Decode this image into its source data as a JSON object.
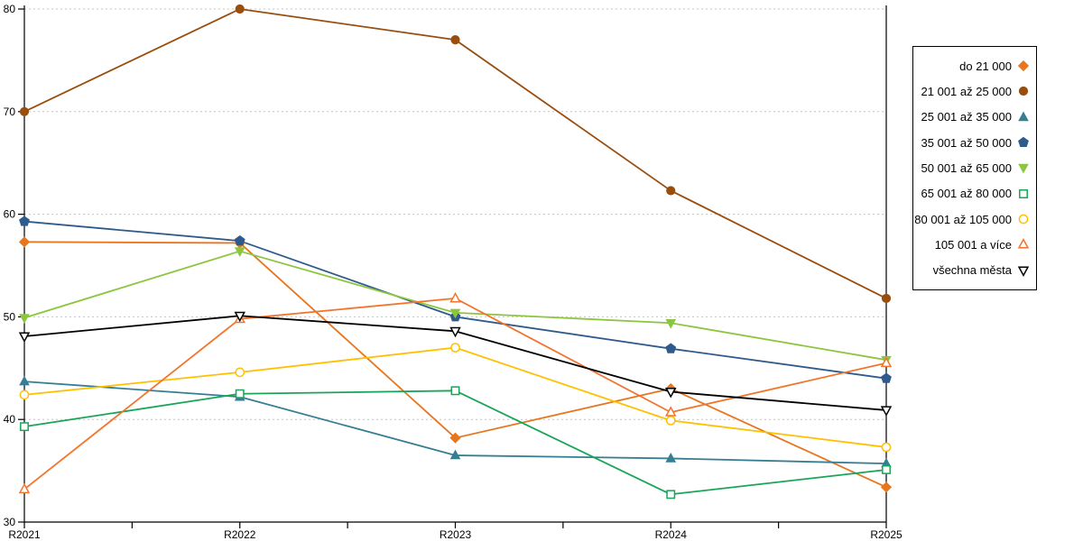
{
  "chart_data": {
    "type": "line",
    "title": "",
    "xlabel": "",
    "ylabel": "",
    "categories": [
      "R2021",
      "R2022",
      "R2023",
      "R2024",
      "R2025"
    ],
    "ylim": [
      30,
      80
    ],
    "y_ticks": [
      {
        "value": 30,
        "label": "30"
      },
      {
        "value": 40,
        "label": "40"
      },
      {
        "value": 50,
        "label": "50"
      },
      {
        "value": 60,
        "label": "60"
      },
      {
        "value": 70,
        "label": "70"
      },
      {
        "value": 80,
        "label": "80"
      }
    ],
    "grid_values": [
      40,
      50,
      60,
      70,
      80
    ],
    "grid_style": "horizontal-dotted",
    "legend_position": "right",
    "series": [
      {
        "name": "do 21 000",
        "color": "#E8761E",
        "marker": "diamond",
        "fill": "filled",
        "values": [
          57.3,
          57.2,
          38.2,
          43.0,
          33.4
        ]
      },
      {
        "name": "21 001 až 25 000",
        "color": "#9A4E0E",
        "marker": "circle",
        "fill": "filled",
        "values": [
          70.0,
          80.0,
          77.0,
          62.3,
          51.8
        ]
      },
      {
        "name": "25 001 až 35 000",
        "color": "#357E93",
        "marker": "triangle-up",
        "fill": "filled",
        "values": [
          43.7,
          42.2,
          36.5,
          36.2,
          35.7
        ]
      },
      {
        "name": "35 001 až 50 000",
        "color": "#2F5B8C",
        "marker": "pentagon",
        "fill": "filled",
        "values": [
          59.3,
          57.4,
          50.0,
          46.9,
          44.0
        ]
      },
      {
        "name": "50 001 až 65 000",
        "color": "#8CC63E",
        "marker": "triangle-down",
        "fill": "filled",
        "values": [
          49.9,
          56.4,
          50.4,
          49.4,
          45.8
        ]
      },
      {
        "name": "65 001 až 80 000",
        "color": "#18A558",
        "marker": "square",
        "fill": "hollow",
        "values": [
          39.3,
          42.5,
          42.8,
          32.7,
          35.1
        ]
      },
      {
        "name": "80 001 až 105 000",
        "color": "#FFC000",
        "marker": "circle",
        "fill": "hollow",
        "values": [
          42.4,
          44.6,
          47.0,
          39.9,
          37.3
        ]
      },
      {
        "name": "105 001 a více",
        "color": "#F3742C",
        "marker": "triangle-up",
        "fill": "hollow",
        "values": [
          33.2,
          49.8,
          51.8,
          40.7,
          45.5
        ]
      },
      {
        "name": "všechna města",
        "color": "#000000",
        "marker": "triangle-down",
        "fill": "hollow",
        "values": [
          48.1,
          50.1,
          48.6,
          42.7,
          40.9
        ]
      }
    ]
  },
  "colors": {
    "background": "#FFFFFF",
    "grid": "#C4C4C4",
    "axis": "#000000",
    "legend_border": "#000000",
    "text": "#000000"
  }
}
